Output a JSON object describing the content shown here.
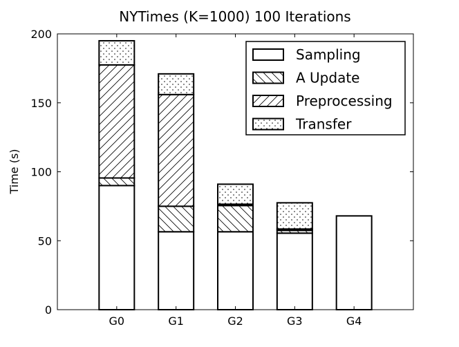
{
  "chart_data": {
    "type": "stacked_bar",
    "title": "NYTimes (K=1000) 100 Iterations",
    "y_label": "Time (s)",
    "categories": [
      "G0",
      "G1",
      "G2",
      "G3",
      "G4"
    ],
    "series": [
      {
        "name": "Sampling",
        "color": "#ffffff",
        "hatch": "none",
        "values": [
          90,
          56.5,
          56.5,
          55.5,
          68
        ]
      },
      {
        "name": "A Update",
        "color": "#ffffff",
        "hatch": "backslash",
        "values": [
          5.5,
          18.5,
          19,
          2,
          0
        ]
      },
      {
        "name": "Preprocessing",
        "color": "#ffffff",
        "hatch": "slash",
        "values": [
          82,
          81,
          1,
          1,
          0
        ]
      },
      {
        "name": "Transfer",
        "color": "#ffffff",
        "hatch": "dots",
        "values": [
          17.5,
          15,
          14.5,
          19,
          0
        ]
      }
    ],
    "ylim": [
      0,
      200
    ],
    "yticks": [
      0,
      50,
      100,
      150,
      200
    ],
    "legend": "upper right"
  }
}
